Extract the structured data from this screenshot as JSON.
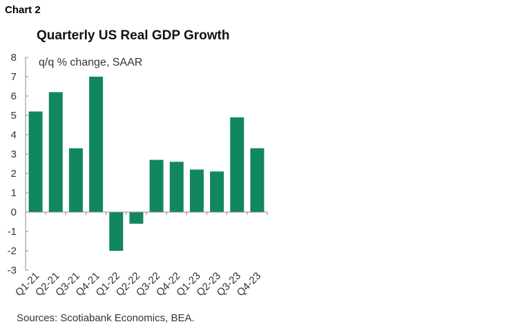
{
  "chart_label": "Chart 2",
  "chart_data": {
    "type": "bar",
    "title": "Quarterly US Real GDP Growth",
    "subtitle": "q/q % change, SAAR",
    "categories": [
      "Q1-21",
      "Q2-21",
      "Q3-21",
      "Q4-21",
      "Q1-22",
      "Q2-22",
      "Q3-22",
      "Q4-22",
      "Q1-23",
      "Q2-23",
      "Q3-23",
      "Q4-23"
    ],
    "values": [
      5.2,
      6.2,
      3.3,
      7.0,
      -2.0,
      -0.6,
      2.7,
      2.6,
      2.2,
      2.1,
      4.9,
      3.3
    ],
    "ylim": [
      -3,
      8
    ],
    "yticks": [
      8,
      7,
      6,
      5,
      4,
      3,
      2,
      1,
      0,
      -1,
      -2,
      -3
    ],
    "xlabel": "",
    "ylabel": "",
    "grid": false,
    "bar_color": "#11875d",
    "source": "Sources: Scotiabank Economics, BEA."
  }
}
